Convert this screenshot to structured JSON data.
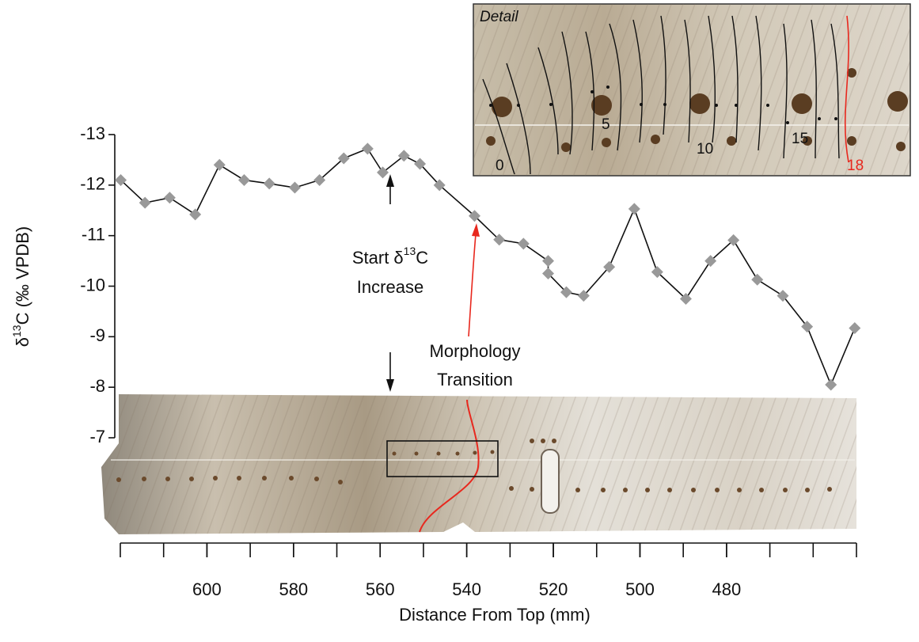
{
  "chart_data": {
    "type": "line",
    "x_label": "Distance From Top (mm)",
    "y_label": [
      "δ",
      "13",
      "C (‰ VPDB)"
    ],
    "x": [
      619.9,
      614.3,
      608.6,
      602.7,
      597.1,
      591.4,
      585.6,
      579.7,
      574.0,
      568.4,
      562.9,
      559.4,
      554.5,
      550.8,
      546.3,
      538.2,
      532.5,
      526.9,
      521.2,
      521.2,
      517.0,
      513.0,
      507.1,
      501.3,
      496.0,
      489.4,
      483.7,
      478.4,
      472.9,
      467.0,
      461.4,
      455.9,
      450.4
    ],
    "series": [
      {
        "name": "δ13C",
        "color": "#111111",
        "marker_color": "#999999",
        "values": [
          -12.1,
          -11.65,
          -11.75,
          -11.42,
          -12.4,
          -12.1,
          -12.03,
          -11.95,
          -12.1,
          -12.53,
          -12.72,
          -12.25,
          -12.58,
          -12.42,
          -12.0,
          -11.39,
          -10.92,
          -10.84,
          -10.5,
          -10.25,
          -9.88,
          -9.81,
          -10.38,
          -11.53,
          -10.28,
          -9.75,
          -10.5,
          -10.91,
          -10.13,
          -9.81,
          -9.2,
          -8.05,
          -9.17
        ]
      }
    ],
    "xlim": [
      620,
      450
    ],
    "xticks": [
      600,
      580,
      560,
      540,
      520,
      500,
      480
    ],
    "xminorticks": [
      620,
      610,
      600,
      590,
      580,
      570,
      560,
      550,
      540,
      530,
      520,
      510,
      500,
      490,
      480,
      470,
      460,
      450
    ],
    "ylim": [
      -7,
      -13
    ],
    "yticks": [
      -13,
      -12,
      -11,
      -10,
      -9,
      -8,
      -7
    ],
    "annotations": [
      {
        "lines": [
          [
            "Start δ",
            "13",
            "C"
          ],
          [
            "Increase"
          ]
        ],
        "color": "#111111"
      },
      {
        "lines": [
          [
            "Morphology"
          ],
          [
            "Transition"
          ]
        ],
        "color": "#e8281e"
      }
    ],
    "inset": {
      "title": "Detail",
      "labels": [
        "0",
        "5",
        "10",
        "15",
        "18"
      ]
    }
  }
}
